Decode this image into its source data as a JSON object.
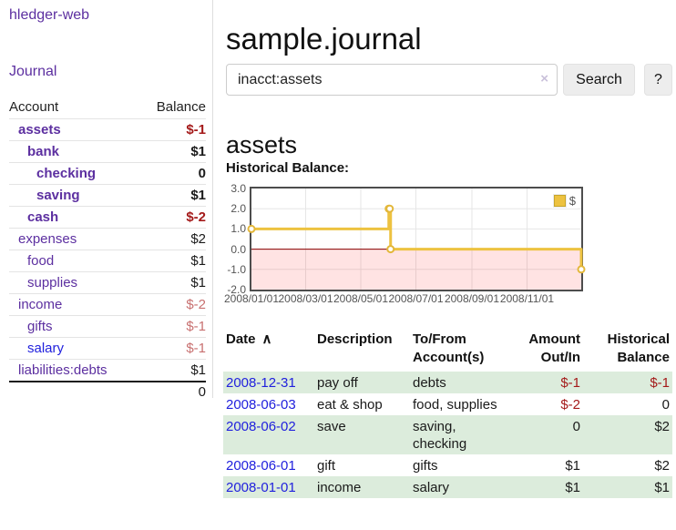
{
  "app": {
    "title": "hledger-web",
    "nav_journal": "Journal"
  },
  "sidebar": {
    "headers": {
      "account": "Account",
      "balance": "Balance"
    },
    "accounts": [
      {
        "name": "assets",
        "depth": 1,
        "balance": "$-1",
        "bold": true,
        "neg": "strong"
      },
      {
        "name": "bank",
        "depth": 2,
        "balance": "$1",
        "bold": true,
        "neg": "none"
      },
      {
        "name": "checking",
        "depth": 3,
        "balance": "0",
        "bold": true,
        "neg": "none"
      },
      {
        "name": "saving",
        "depth": 3,
        "balance": "$1",
        "bold": true,
        "neg": "none"
      },
      {
        "name": "cash",
        "depth": 2,
        "balance": "$-2",
        "bold": true,
        "neg": "strong"
      },
      {
        "name": "expenses",
        "depth": 1,
        "balance": "$2",
        "bold": false,
        "neg": "none"
      },
      {
        "name": "food",
        "depth": 2,
        "balance": "$1",
        "bold": false,
        "neg": "none"
      },
      {
        "name": "supplies",
        "depth": 2,
        "balance": "$1",
        "bold": false,
        "neg": "none"
      },
      {
        "name": "income",
        "depth": 1,
        "balance": "$-2",
        "bold": false,
        "neg": "soft"
      },
      {
        "name": "gifts",
        "depth": 2,
        "balance": "$-1",
        "bold": false,
        "neg": "soft"
      },
      {
        "name": "salary",
        "depth": 2,
        "balance": "$-1",
        "bold": false,
        "neg": "soft",
        "link_color": "blue"
      },
      {
        "name": "liabilities:debts",
        "depth": 1,
        "balance": "$1",
        "bold": false,
        "neg": "none"
      }
    ],
    "total": "0"
  },
  "header": {
    "title": "sample.journal"
  },
  "search": {
    "value": "inacct:assets",
    "clear_icon": "×",
    "button_label": "Search",
    "help_label": "?"
  },
  "account_page": {
    "heading": "assets",
    "chart_label": "Historical Balance:"
  },
  "chart_data": {
    "type": "line",
    "step": true,
    "title": "Historical Balance",
    "series": [
      {
        "name": "$",
        "points": [
          [
            "2008-01-01",
            1
          ],
          [
            "2008-06-01",
            2
          ],
          [
            "2008-06-02",
            2
          ],
          [
            "2008-06-03",
            0
          ],
          [
            "2008-12-31",
            -1
          ]
        ]
      }
    ],
    "x_range": [
      "2008-01-01",
      "2008-12-31"
    ],
    "x_ticks": [
      "2008/01/01",
      "2008/03/01",
      "2008/05/01",
      "2008/07/01",
      "2008/09/01",
      "2008/11/01"
    ],
    "y_ticks": [
      "3.0",
      "2.0",
      "1.0",
      "0.0",
      "-1.0",
      "-2.0"
    ],
    "ylim": [
      -2,
      3
    ],
    "grid": true,
    "legend": "$",
    "legend_position": "top-right",
    "colors": {
      "line": "#edc240",
      "marker_stroke": "#e3b73a",
      "negative_fill": "rgba(255,0,0,0.11)",
      "zero_line": "#8b0000",
      "grid": "#e6e6e6",
      "border": "#4d4d4d",
      "axis_text": "#545454"
    }
  },
  "register": {
    "headers": {
      "date": "Date",
      "sort_icon": "∧",
      "description": "Description",
      "accounts": "To/From Account(s)",
      "amount": "Amount Out/In",
      "balance": "Historical Balance"
    },
    "rows": [
      {
        "date": "2008-12-31",
        "description": "pay off",
        "accounts": "debts",
        "amount": "$-1",
        "amount_neg": true,
        "balance": "$-1",
        "balance_neg": true
      },
      {
        "date": "2008-06-03",
        "description": "eat & shop",
        "accounts": "food, supplies",
        "amount": "$-2",
        "amount_neg": true,
        "balance": "0",
        "balance_neg": false
      },
      {
        "date": "2008-06-02",
        "description": "save",
        "accounts": "saving, checking",
        "amount": "0",
        "amount_neg": false,
        "balance": "$2",
        "balance_neg": false
      },
      {
        "date": "2008-06-01",
        "description": "gift",
        "accounts": "gifts",
        "amount": "$1",
        "amount_neg": false,
        "balance": "$2",
        "balance_neg": false
      },
      {
        "date": "2008-01-01",
        "description": "income",
        "accounts": "salary",
        "amount": "$1",
        "amount_neg": false,
        "balance": "$1",
        "balance_neg": false
      }
    ]
  },
  "colors": {
    "link_purple": "#5c2fa0",
    "link_blue": "#2121dd",
    "negative_strong": "#a41a1a",
    "negative_soft": "#c87070",
    "row_stripe_green": "#dcecdc"
  }
}
